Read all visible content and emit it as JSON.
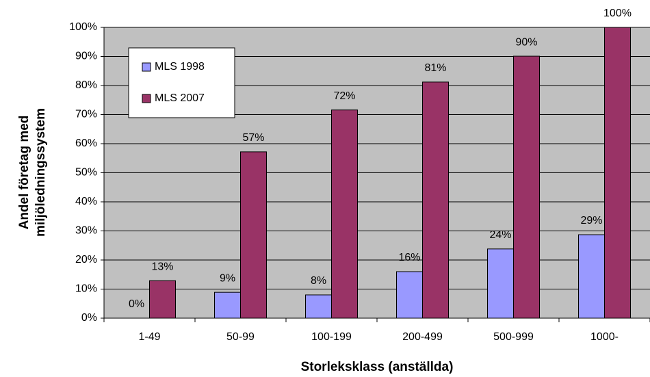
{
  "chart_data": {
    "type": "bar",
    "xlabel": "Storleksklass (anställda)",
    "ylabel": [
      "Andel företag med",
      "miljöledningssystem"
    ],
    "categories": [
      "1-49",
      "50-99",
      "100-199",
      "200-499",
      "500-999",
      "1000-"
    ],
    "series": [
      {
        "name": "MLS 1998",
        "color": "#9999ff",
        "values": [
          0,
          8.9,
          8.0,
          16.0,
          23.8,
          28.7
        ],
        "value_labels": [
          "0%",
          "9%",
          "8%",
          "16%",
          "24%",
          "29%"
        ]
      },
      {
        "name": "MLS 2007",
        "color": "#993366",
        "values": [
          12.9,
          57.2,
          71.6,
          81.2,
          90.1,
          100
        ],
        "value_labels": [
          "13%",
          "57%",
          "72%",
          "81%",
          "90%",
          "100%"
        ]
      }
    ],
    "ylim": [
      0,
      100
    ],
    "yticks": [
      {
        "value": 0,
        "label": "0%"
      },
      {
        "value": 10,
        "label": "10%"
      },
      {
        "value": 20,
        "label": "20%"
      },
      {
        "value": 30,
        "label": "30%"
      },
      {
        "value": 40,
        "label": "40%"
      },
      {
        "value": 50,
        "label": "50%"
      },
      {
        "value": 60,
        "label": "60%"
      },
      {
        "value": 70,
        "label": "70%"
      },
      {
        "value": 80,
        "label": "80%"
      },
      {
        "value": 90,
        "label": "90%"
      },
      {
        "value": 100,
        "label": "100%"
      }
    ],
    "grid": true,
    "legend": "upper left"
  }
}
